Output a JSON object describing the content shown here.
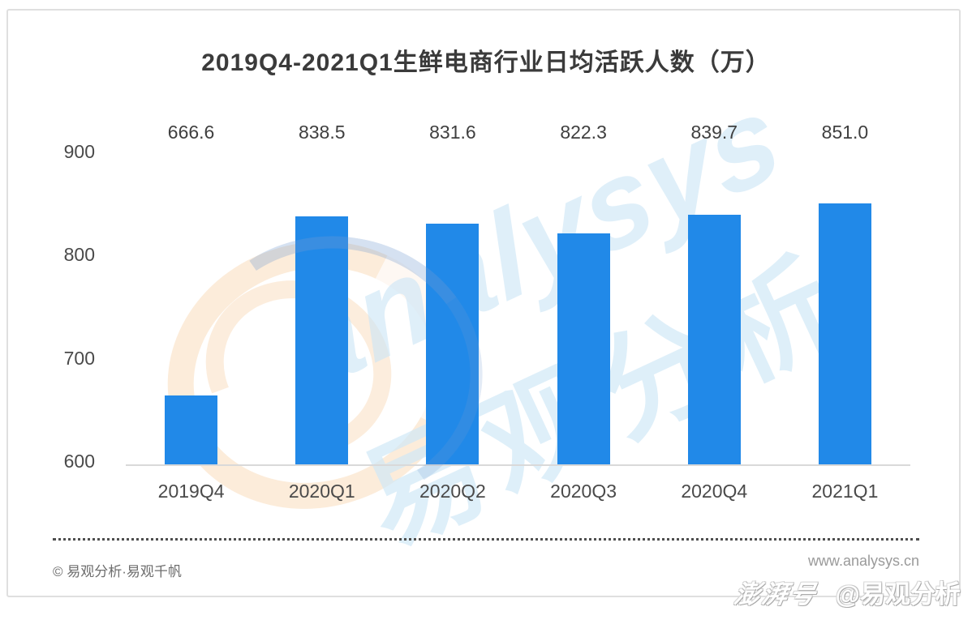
{
  "title": "2019Q4-2021Q1生鲜电商行业日均活跃人数（万）",
  "chart_data": {
    "type": "bar",
    "title": "2019Q4-2021Q1生鲜电商行业日均活跃人数（万）",
    "categories": [
      "2019Q4",
      "2020Q1",
      "2020Q2",
      "2020Q3",
      "2020Q4",
      "2021Q1"
    ],
    "values": [
      666.6,
      838.5,
      831.6,
      822.3,
      839.7,
      851.0
    ],
    "value_labels": [
      "666.6",
      "838.5",
      "831.6",
      "822.3",
      "839.7",
      "851.0"
    ],
    "xlabel": "",
    "ylabel": "",
    "ylim": [
      600,
      900
    ],
    "y_ticks": [
      "900",
      "800",
      "700",
      "600"
    ],
    "grid": false,
    "legend": "none"
  },
  "colors": {
    "bar": "#2189e8",
    "axis_text": "#4a4a4a",
    "value_text": "#3f3f3f"
  },
  "watermark": {
    "brand_en": "analysys",
    "brand_cn": "易观分析"
  },
  "footer": {
    "copyright": "© 易观分析·易观千帆",
    "website": "www.analysys.cn"
  },
  "badge": {
    "platform": "澎湃号",
    "account": "@易观分析"
  }
}
